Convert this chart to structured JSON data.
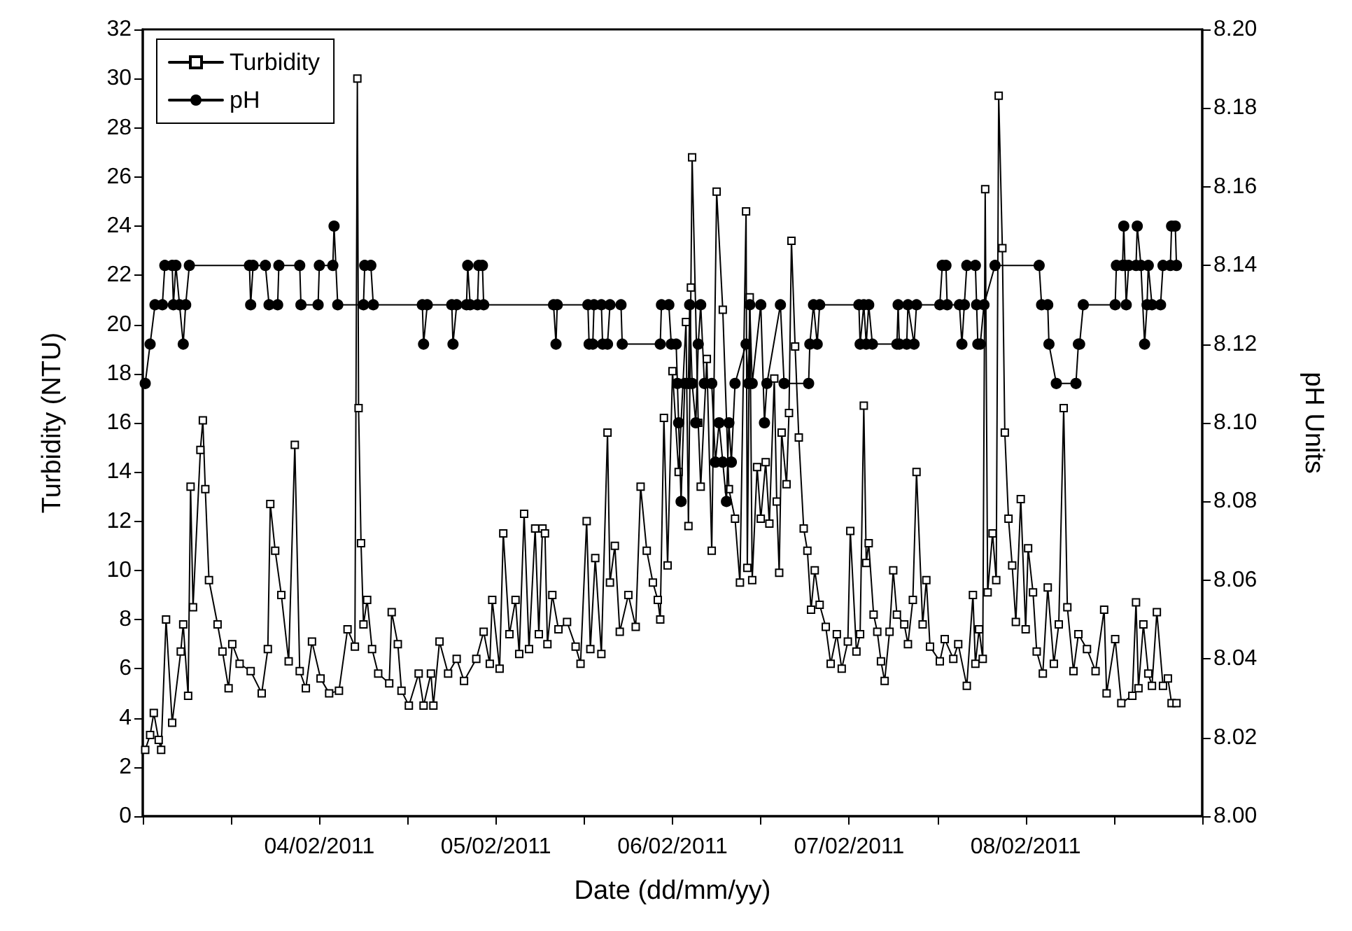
{
  "chart_data": {
    "type": "line",
    "xlabel": "Date (dd/mm/yy)",
    "ylabel": "Turbidity (NTU)",
    "y2label": "pH Units",
    "xlim": [
      "2011-02-03T00:00",
      "2011-02-09T00:00"
    ],
    "xticks": [
      {
        "value": "2011-02-03T00:00",
        "label": null
      },
      {
        "value": "2011-02-03T12:00",
        "label": null
      },
      {
        "value": "2011-02-04T00:00",
        "label": "04/02/2011"
      },
      {
        "value": "2011-02-04T12:00",
        "label": null
      },
      {
        "value": "2011-02-05T00:00",
        "label": "05/02/2011"
      },
      {
        "value": "2011-02-05T12:00",
        "label": null
      },
      {
        "value": "2011-02-06T00:00",
        "label": "06/02/2011"
      },
      {
        "value": "2011-02-06T12:00",
        "label": null
      },
      {
        "value": "2011-02-07T00:00",
        "label": "07/02/2011"
      },
      {
        "value": "2011-02-07T12:00",
        "label": null
      },
      {
        "value": "2011-02-08T00:00",
        "label": "08/02/2011"
      },
      {
        "value": "2011-02-08T12:00",
        "label": null
      },
      {
        "value": "2011-02-09T00:00",
        "label": null
      }
    ],
    "ylim": [
      0,
      32
    ],
    "yticks": [
      0,
      2,
      4,
      6,
      8,
      10,
      12,
      14,
      16,
      18,
      20,
      22,
      24,
      26,
      28,
      30,
      32
    ],
    "y2lim": [
      8,
      8.2
    ],
    "y2ticks": [
      {
        "value": 8,
        "label": "8.00"
      },
      8.02,
      8.04,
      8.06,
      8.08,
      {
        "value": 8.1,
        "label": "8.10"
      },
      8.12,
      8.14,
      8.16,
      8.18,
      {
        "value": 8.2,
        "label": "8.20"
      }
    ],
    "grid": false,
    "legend": "top left",
    "line_style": "solid",
    "series": [
      {
        "name": "Turbidity",
        "color": "#000000",
        "marker": "square",
        "x": [
          "2011-02-03T00:20",
          "2011-02-03T01:00",
          "2011-02-03T01:30",
          "2011-02-03T02:10",
          "2011-02-03T02:30",
          "2011-02-03T03:10",
          "2011-02-03T04:00",
          "2011-02-03T05:10",
          "2011-02-03T05:30",
          "2011-02-03T06:10",
          "2011-02-03T06:30",
          "2011-02-03T06:50",
          "2011-02-03T07:50",
          "2011-02-03T08:10",
          "2011-02-03T08:30",
          "2011-02-03T09:00",
          "2011-02-03T10:10",
          "2011-02-03T10:50",
          "2011-02-03T11:40",
          "2011-02-03T12:10",
          "2011-02-03T13:10",
          "2011-02-03T14:40",
          "2011-02-03T16:10",
          "2011-02-03T17:00",
          "2011-02-03T17:20",
          "2011-02-03T18:00",
          "2011-02-03T18:50",
          "2011-02-03T19:50",
          "2011-02-03T20:40",
          "2011-02-03T21:20",
          "2011-02-03T22:10",
          "2011-02-03T23:00",
          "2011-02-04T00:10",
          "2011-02-04T01:20",
          "2011-02-04T02:40",
          "2011-02-04T03:50",
          "2011-02-04T04:50",
          "2011-02-04T05:10",
          "2011-02-04T05:20",
          "2011-02-04T05:40",
          "2011-02-04T06:00",
          "2011-02-04T06:30",
          "2011-02-04T07:10",
          "2011-02-04T08:00",
          "2011-02-04T09:30",
          "2011-02-04T09:50",
          "2011-02-04T10:40",
          "2011-02-04T11:10",
          "2011-02-04T12:10",
          "2011-02-04T13:30",
          "2011-02-04T14:10",
          "2011-02-04T15:10",
          "2011-02-04T15:30",
          "2011-02-04T16:20",
          "2011-02-04T17:30",
          "2011-02-04T18:40",
          "2011-02-04T19:40",
          "2011-02-04T21:20",
          "2011-02-04T22:20",
          "2011-02-04T23:10",
          "2011-02-04T23:30",
          "2011-02-05T00:30",
          "2011-02-05T01:00",
          "2011-02-05T01:50",
          "2011-02-05T02:40",
          "2011-02-05T03:10",
          "2011-02-05T03:50",
          "2011-02-05T04:30",
          "2011-02-05T05:20",
          "2011-02-05T05:50",
          "2011-02-05T06:20",
          "2011-02-05T06:40",
          "2011-02-05T07:00",
          "2011-02-05T07:40",
          "2011-02-05T08:30",
          "2011-02-05T09:40",
          "2011-02-05T10:50",
          "2011-02-05T11:30",
          "2011-02-05T12:20",
          "2011-02-05T12:50",
          "2011-02-05T13:30",
          "2011-02-05T14:20",
          "2011-02-05T15:10",
          "2011-02-05T15:30",
          "2011-02-05T16:10",
          "2011-02-05T16:50",
          "2011-02-05T18:00",
          "2011-02-05T19:00",
          "2011-02-05T19:40",
          "2011-02-05T20:30",
          "2011-02-05T21:20",
          "2011-02-05T22:00",
          "2011-02-05T22:20",
          "2011-02-05T22:50",
          "2011-02-05T23:20",
          "2011-02-06T00:00",
          "2011-02-06T00:50",
          "2011-02-06T01:50",
          "2011-02-06T02:10",
          "2011-02-06T02:30",
          "2011-02-06T02:40",
          "2011-02-06T03:30",
          "2011-02-06T03:50",
          "2011-02-06T04:40",
          "2011-02-06T05:20",
          "2011-02-06T06:00",
          "2011-02-06T06:50",
          "2011-02-06T07:40",
          "2011-02-06T08:30",
          "2011-02-06T09:10",
          "2011-02-06T10:00",
          "2011-02-06T10:10",
          "2011-02-06T10:30",
          "2011-02-06T10:50",
          "2011-02-06T11:30",
          "2011-02-06T12:00",
          "2011-02-06T12:40",
          "2011-02-06T13:10",
          "2011-02-06T13:50",
          "2011-02-06T14:10",
          "2011-02-06T14:30",
          "2011-02-06T14:50",
          "2011-02-06T15:30",
          "2011-02-06T15:50",
          "2011-02-06T16:10",
          "2011-02-06T16:40",
          "2011-02-06T17:10",
          "2011-02-06T17:50",
          "2011-02-06T18:20",
          "2011-02-06T18:50",
          "2011-02-06T19:20",
          "2011-02-06T20:00",
          "2011-02-06T20:50",
          "2011-02-06T21:30",
          "2011-02-06T22:20",
          "2011-02-06T23:00",
          "2011-02-06T23:50",
          "2011-02-07T00:10",
          "2011-02-07T01:00",
          "2011-02-07T01:30",
          "2011-02-07T02:00",
          "2011-02-07T02:20",
          "2011-02-07T02:40",
          "2011-02-07T03:20",
          "2011-02-07T03:50",
          "2011-02-07T04:20",
          "2011-02-07T04:50",
          "2011-02-07T05:30",
          "2011-02-07T06:00",
          "2011-02-07T06:30",
          "2011-02-07T07:30",
          "2011-02-07T08:00",
          "2011-02-07T08:40",
          "2011-02-07T09:10",
          "2011-02-07T10:00",
          "2011-02-07T10:30",
          "2011-02-07T11:00",
          "2011-02-07T12:20",
          "2011-02-07T13:00",
          "2011-02-07T14:10",
          "2011-02-07T14:50",
          "2011-02-07T16:00",
          "2011-02-07T16:50",
          "2011-02-07T17:10",
          "2011-02-07T17:40",
          "2011-02-07T18:10",
          "2011-02-07T18:30",
          "2011-02-07T18:50",
          "2011-02-07T19:30",
          "2011-02-07T20:00",
          "2011-02-07T20:20",
          "2011-02-07T20:50",
          "2011-02-07T21:10",
          "2011-02-07T21:40",
          "2011-02-07T22:10",
          "2011-02-07T22:40",
          "2011-02-07T23:20",
          "2011-02-08T00:00",
          "2011-02-08T00:20",
          "2011-02-08T01:00",
          "2011-02-08T01:30",
          "2011-02-08T02:20",
          "2011-02-08T03:00",
          "2011-02-08T03:50",
          "2011-02-08T04:30",
          "2011-02-08T05:10",
          "2011-02-08T05:40",
          "2011-02-08T06:30",
          "2011-02-08T07:10",
          "2011-02-08T08:20",
          "2011-02-08T09:30",
          "2011-02-08T10:40",
          "2011-02-08T11:00",
          "2011-02-08T12:10",
          "2011-02-08T13:00",
          "2011-02-08T14:30",
          "2011-02-08T15:00",
          "2011-02-08T15:20",
          "2011-02-08T16:00",
          "2011-02-08T16:40",
          "2011-02-08T17:10",
          "2011-02-08T17:50",
          "2011-02-08T18:40",
          "2011-02-08T19:20",
          "2011-02-08T19:50",
          "2011-02-08T20:30"
        ],
        "values": [
          2.7,
          3.3,
          4.2,
          3.1,
          2.7,
          8.0,
          3.8,
          6.7,
          7.8,
          4.9,
          13.4,
          8.5,
          14.9,
          16.1,
          13.3,
          9.6,
          7.8,
          6.7,
          5.2,
          7.0,
          6.2,
          5.9,
          5.0,
          6.8,
          12.7,
          10.8,
          9.0,
          6.3,
          15.1,
          5.9,
          5.2,
          7.1,
          5.6,
          5.0,
          5.1,
          7.6,
          6.9,
          30,
          16.6,
          11.1,
          7.8,
          8.8,
          6.8,
          5.8,
          5.4,
          8.3,
          7.0,
          5.1,
          4.5,
          5.8,
          4.5,
          5.8,
          4.5,
          7.1,
          5.8,
          6.4,
          5.5,
          6.4,
          7.5,
          6.2,
          8.8,
          6.0,
          11.5,
          7.4,
          8.8,
          6.6,
          12.3,
          6.8,
          11.7,
          7.4,
          11.7,
          11.5,
          7.0,
          9.0,
          7.6,
          7.9,
          6.9,
          6.2,
          12.0,
          6.8,
          10.5,
          6.6,
          15.6,
          9.5,
          11.0,
          7.5,
          9.0,
          7.7,
          13.4,
          10.8,
          9.5,
          8.8,
          8.0,
          16.2,
          10.2,
          18.1,
          14.0,
          20.1,
          11.8,
          21.5,
          26.8,
          16.0,
          13.4,
          18.6,
          10.8,
          25.4,
          20.6,
          13.3,
          12.1,
          9.5,
          24.6,
          10.1,
          21.1,
          9.6,
          14.2,
          12.1,
          14.4,
          11.9,
          17.8,
          12.8,
          9.9,
          15.6,
          13.5,
          16.4,
          23.4,
          19.1,
          15.4,
          11.7,
          10.8,
          8.4,
          10.0,
          8.6,
          7.7,
          6.2,
          7.4,
          6.0,
          7.1,
          11.6,
          6.7,
          7.4,
          16.7,
          10.3,
          11.1,
          8.2,
          7.5,
          6.3,
          5.5,
          7.5,
          10.0,
          8.2,
          7.8,
          7.0,
          8.8,
          14.0,
          7.8,
          9.6,
          6.9,
          6.3,
          7.2,
          6.4,
          7.0,
          5.3,
          9.0,
          6.2,
          7.6,
          6.4,
          25.5,
          9.1,
          11.5,
          9.6,
          29.3,
          23.1,
          15.6,
          12.1,
          10.2,
          7.9,
          12.9,
          7.6,
          10.9,
          9.1,
          6.7,
          5.8,
          9.3,
          6.2,
          7.8,
          16.6,
          8.5,
          5.9,
          7.4,
          6.8,
          5.9,
          8.4,
          5.0,
          7.2,
          4.6,
          4.9,
          8.7,
          5.2,
          7.8,
          5.8,
          5.3,
          8.3,
          5.3,
          5.6,
          4.6,
          4.6
        ]
      },
      {
        "name": "pH",
        "color": "#000000",
        "marker": "circle",
        "axis": "y2",
        "x": [
          "2011-02-03T00:20",
          "2011-02-03T01:00",
          "2011-02-03T01:40",
          "2011-02-03T02:40",
          "2011-02-03T03:00",
          "2011-02-03T04:00",
          "2011-02-03T04:10",
          "2011-02-03T04:30",
          "2011-02-03T05:00",
          "2011-02-03T05:30",
          "2011-02-03T05:50",
          "2011-02-03T06:20",
          "2011-02-03T14:30",
          "2011-02-03T14:40",
          "2011-02-03T15:00",
          "2011-02-03T16:40",
          "2011-02-03T17:10",
          "2011-02-03T18:20",
          "2011-02-03T18:30",
          "2011-02-03T21:20",
          "2011-02-03T21:30",
          "2011-02-03T23:50",
          "2011-02-04T00:00",
          "2011-02-04T01:50",
          "2011-02-04T02:00",
          "2011-02-04T02:30",
          "2011-02-04T06:00",
          "2011-02-04T06:10",
          "2011-02-04T07:00",
          "2011-02-04T07:20",
          "2011-02-04T14:00",
          "2011-02-04T14:10",
          "2011-02-04T14:40",
          "2011-02-04T18:00",
          "2011-02-04T18:10",
          "2011-02-04T18:40",
          "2011-02-04T20:00",
          "2011-02-04T20:10",
          "2011-02-04T20:30",
          "2011-02-04T21:30",
          "2011-02-04T21:40",
          "2011-02-04T22:10",
          "2011-02-04T22:20",
          "2011-02-05T07:50",
          "2011-02-05T08:10",
          "2011-02-05T08:20",
          "2011-02-05T12:30",
          "2011-02-05T12:40",
          "2011-02-05T13:10",
          "2011-02-05T13:20",
          "2011-02-05T14:20",
          "2011-02-05T14:30",
          "2011-02-05T15:10",
          "2011-02-05T15:30",
          "2011-02-05T17:00",
          "2011-02-05T17:10",
          "2011-02-05T22:20",
          "2011-02-05T22:30",
          "2011-02-05T23:30",
          "2011-02-05T23:50",
          "2011-02-06T00:30",
          "2011-02-06T00:40",
          "2011-02-06T00:50",
          "2011-02-06T01:10",
          "2011-02-06T01:40",
          "2011-02-06T02:10",
          "2011-02-06T02:20",
          "2011-02-06T02:40",
          "2011-02-06T03:10",
          "2011-02-06T03:30",
          "2011-02-06T03:50",
          "2011-02-06T04:20",
          "2011-02-06T05:20",
          "2011-02-06T05:50",
          "2011-02-06T06:20",
          "2011-02-06T06:50",
          "2011-02-06T07:20",
          "2011-02-06T07:40",
          "2011-02-06T08:00",
          "2011-02-06T08:30",
          "2011-02-06T10:00",
          "2011-02-06T10:20",
          "2011-02-06T10:30",
          "2011-02-06T10:50",
          "2011-02-06T12:00",
          "2011-02-06T12:30",
          "2011-02-06T12:50",
          "2011-02-06T14:40",
          "2011-02-06T15:10",
          "2011-02-06T18:30",
          "2011-02-06T18:40",
          "2011-02-06T19:10",
          "2011-02-06T19:40",
          "2011-02-06T20:00",
          "2011-02-07T01:20",
          "2011-02-07T01:30",
          "2011-02-07T02:00",
          "2011-02-07T02:20",
          "2011-02-07T02:40",
          "2011-02-07T03:10",
          "2011-02-07T06:30",
          "2011-02-07T06:40",
          "2011-02-07T06:50",
          "2011-02-07T07:50",
          "2011-02-07T08:00",
          "2011-02-07T08:50",
          "2011-02-07T09:10",
          "2011-02-07T12:20",
          "2011-02-07T12:40",
          "2011-02-07T13:10",
          "2011-02-07T13:20",
          "2011-02-07T15:00",
          "2011-02-07T15:20",
          "2011-02-07T15:40",
          "2011-02-07T16:00",
          "2011-02-07T17:10",
          "2011-02-07T17:20",
          "2011-02-07T17:30",
          "2011-02-07T17:50",
          "2011-02-07T18:20",
          "2011-02-07T19:50",
          "2011-02-08T01:50",
          "2011-02-08T02:10",
          "2011-02-08T03:00",
          "2011-02-08T03:10",
          "2011-02-08T04:10",
          "2011-02-08T06:50",
          "2011-02-08T07:10",
          "2011-02-08T07:20",
          "2011-02-08T07:50",
          "2011-02-08T12:10",
          "2011-02-08T12:20",
          "2011-02-08T13:10",
          "2011-02-08T13:20",
          "2011-02-08T13:30",
          "2011-02-08T13:40",
          "2011-02-08T14:00",
          "2011-02-08T15:00",
          "2011-02-08T15:10",
          "2011-02-08T15:40",
          "2011-02-08T16:10",
          "2011-02-08T16:30",
          "2011-02-08T16:40",
          "2011-02-08T17:10",
          "2011-02-08T18:20",
          "2011-02-08T18:40",
          "2011-02-08T19:40",
          "2011-02-08T19:50",
          "2011-02-08T20:20",
          "2011-02-08T20:30"
        ],
        "values": [
          8.11,
          8.12,
          8.13,
          8.13,
          8.14,
          8.14,
          8.13,
          8.14,
          8.13,
          8.12,
          8.13,
          8.14,
          8.14,
          8.13,
          8.14,
          8.14,
          8.13,
          8.13,
          8.14,
          8.14,
          8.13,
          8.13,
          8.14,
          8.14,
          8.15,
          8.13,
          8.13,
          8.14,
          8.14,
          8.13,
          8.13,
          8.12,
          8.13,
          8.13,
          8.12,
          8.13,
          8.13,
          8.14,
          8.13,
          8.13,
          8.14,
          8.14,
          8.13,
          8.13,
          8.12,
          8.13,
          8.13,
          8.12,
          8.12,
          8.13,
          8.13,
          8.12,
          8.12,
          8.13,
          8.13,
          8.12,
          8.12,
          8.13,
          8.13,
          8.12,
          8.12,
          8.11,
          8.1,
          8.08,
          8.11,
          8.11,
          8.13,
          8.11,
          8.1,
          8.12,
          8.13,
          8.11,
          8.11,
          8.09,
          8.1,
          8.09,
          8.08,
          8.1,
          8.09,
          8.11,
          8.12,
          8.11,
          8.13,
          8.11,
          8.13,
          8.1,
          8.11,
          8.13,
          8.11,
          8.11,
          8.12,
          8.13,
          8.12,
          8.13,
          8.13,
          8.12,
          8.13,
          8.12,
          8.13,
          8.12,
          8.12,
          8.13,
          8.12,
          8.12,
          8.13,
          8.12,
          8.13,
          8.13,
          8.14,
          8.14,
          8.13,
          8.13,
          8.12,
          8.13,
          8.14,
          8.14,
          8.13,
          8.12,
          8.12,
          8.13,
          8.14,
          8.14,
          8.13,
          8.13,
          8.12,
          8.11,
          8.11,
          8.12,
          8.12,
          8.13,
          8.13,
          8.14,
          8.14,
          8.15,
          8.14,
          8.13,
          8.14,
          8.14,
          8.15,
          8.14,
          8.12,
          8.13,
          8.14,
          8.13,
          8.13,
          8.14,
          8.14,
          8.15,
          8.15,
          8.14
        ]
      }
    ]
  }
}
